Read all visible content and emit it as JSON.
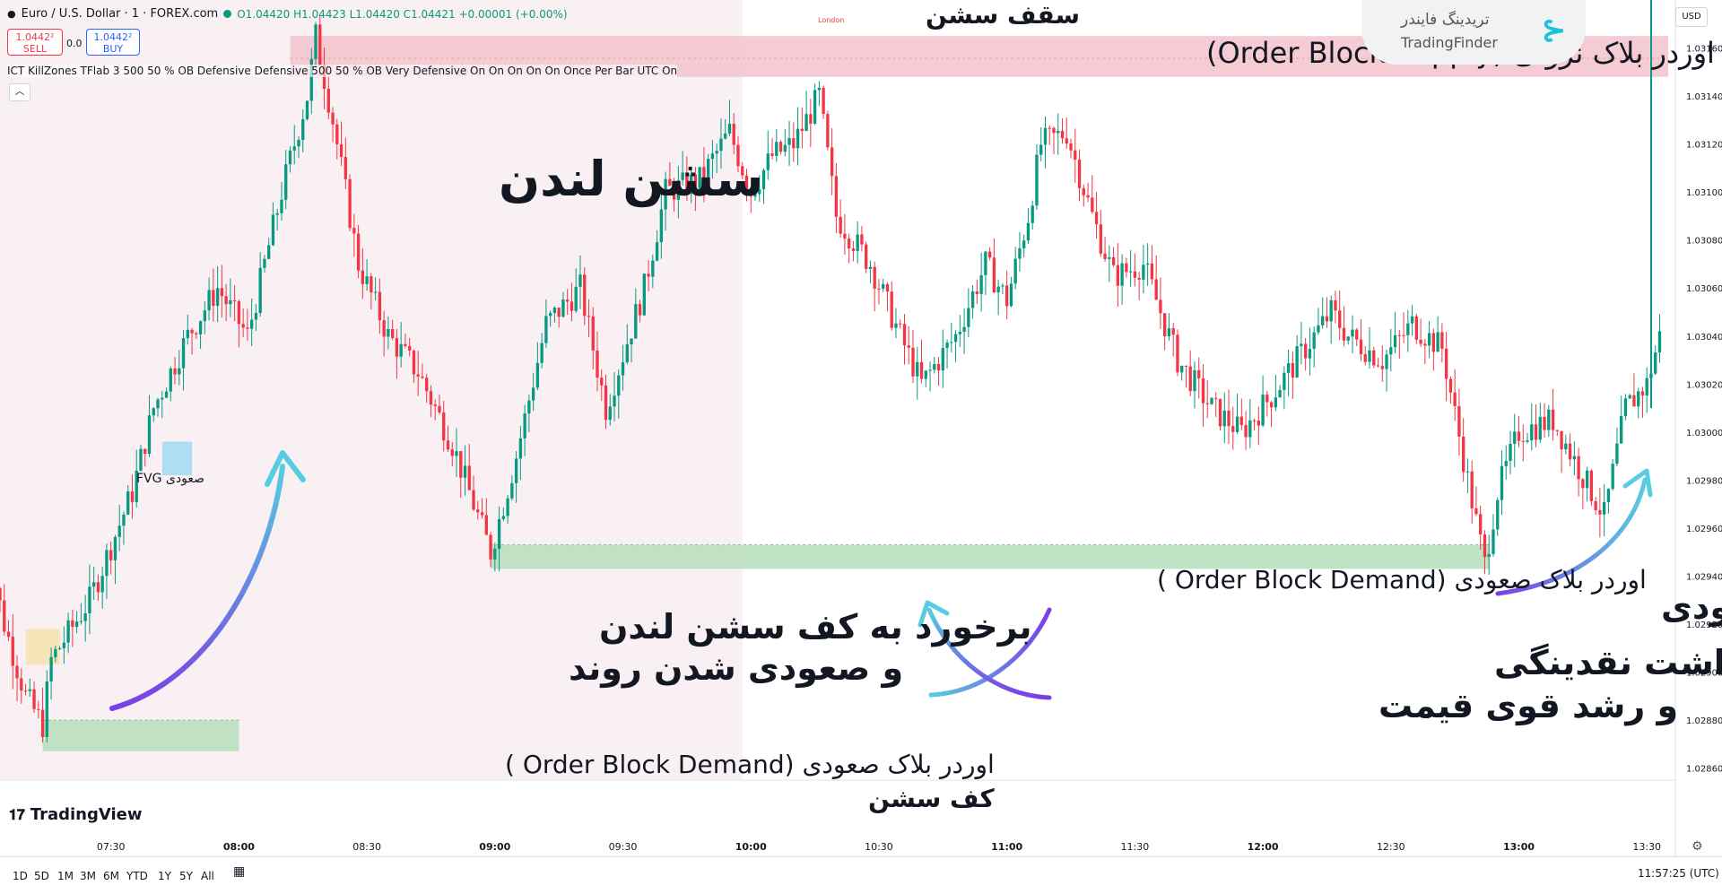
{
  "header": {
    "symbol": "Euro / U.S. Dollar · 1 · FOREX.com",
    "ohlc": "O1.04420 H1.04423 L1.04420 C1.04421 +0.00001 (+0.00%)",
    "sell_price": "1.0442²",
    "sell_label": "SELL",
    "spread": "0.0",
    "buy_price": "1.0442²",
    "buy_label": "BUY",
    "indicator": "ICT KillZones TFlab 3 500 50 % OB Defensive Defensive 500 50 % OB Very Defensive On On On On On Once Per Bar UTC On",
    "collapse_icon": "chevron-up-icon"
  },
  "logo": {
    "text_fa": "تریدینگ فایندر",
    "text_en": "TradingFinder",
    "icon": "tradingfinder-logo-icon"
  },
  "currency_button": "USD",
  "watermark": "TradingView",
  "timeframes": [
    "1D",
    "5D",
    "1M",
    "3M",
    "6M",
    "YTD",
    "1Y",
    "5Y",
    "All"
  ],
  "clock": "11:57:25 (UTC)",
  "colors": {
    "up": "#089981",
    "down": "#f23645",
    "session_fill": "#f9f0f3",
    "supply_zone": "#f4c7cf",
    "demand_zone": "#b9e0bd",
    "fvg": "#a6dcf2",
    "arrow_start": "#7b3fe4",
    "arrow_end": "#56cde0"
  },
  "chart_data": {
    "type": "candlestick",
    "symbol": "EUR/USD",
    "timeframe": "1",
    "x_ticks": [
      "07:30",
      "08:00",
      "08:30",
      "09:00",
      "09:30",
      "10:00",
      "10:30",
      "11:00",
      "11:30",
      "12:00",
      "12:30",
      "13:00",
      "13:30"
    ],
    "y_ticks": [
      "1.03160",
      "1.03140",
      "1.03120",
      "1.03100",
      "1.03080",
      "1.03060",
      "1.03040",
      "1.03020",
      "1.03000",
      "1.02980",
      "1.02960",
      "1.02940",
      "1.02920",
      "1.02900",
      "1.02880",
      "1.02860"
    ],
    "ylim": [
      1.02855,
      1.0318
    ],
    "x_range": [
      "07:04",
      "13:35"
    ],
    "price_path": [
      [
        "07:00",
        1.0296
      ],
      [
        "07:05",
        1.0292
      ],
      [
        "07:10",
        1.0289
      ],
      [
        "07:14",
        1.02878
      ],
      [
        "07:16",
        1.02905
      ],
      [
        "07:25",
        1.0293
      ],
      [
        "07:35",
        1.02975
      ],
      [
        "07:40",
        1.0301
      ],
      [
        "07:48",
        1.0304
      ],
      [
        "07:55",
        1.0306
      ],
      [
        "08:02",
        1.0304
      ],
      [
        "08:10",
        1.031
      ],
      [
        "08:16",
        1.0314
      ],
      [
        "08:18",
        1.03165
      ],
      [
        "08:22",
        1.0313
      ],
      [
        "08:28",
        1.0307
      ],
      [
        "08:35",
        1.0304
      ],
      [
        "08:42",
        1.03025
      ],
      [
        "08:50",
        1.02995
      ],
      [
        "08:56",
        1.02965
      ],
      [
        "08:59",
        1.0295
      ],
      [
        "09:05",
        1.0299
      ],
      [
        "09:12",
        1.03045
      ],
      [
        "09:20",
        1.0306
      ],
      [
        "09:26",
        1.0301
      ],
      [
        "09:35",
        1.0306
      ],
      [
        "09:40",
        1.031
      ],
      [
        "09:48",
        1.03105
      ],
      [
        "09:55",
        1.03125
      ],
      [
        "10:00",
        1.031
      ],
      [
        "10:05",
        1.03115
      ],
      [
        "10:10",
        1.0312
      ],
      [
        "10:16",
        1.0314
      ],
      [
        "10:20",
        1.0309
      ],
      [
        "10:28",
        1.0307
      ],
      [
        "10:35",
        1.0304
      ],
      [
        "10:40",
        1.0302
      ],
      [
        "10:48",
        1.0304
      ],
      [
        "10:55",
        1.0307
      ],
      [
        "11:00",
        1.03055
      ],
      [
        "11:05",
        1.0309
      ],
      [
        "11:08",
        1.0312
      ],
      [
        "11:14",
        1.03125
      ],
      [
        "11:20",
        1.0309
      ],
      [
        "11:25",
        1.03065
      ],
      [
        "11:32",
        1.0307
      ],
      [
        "11:40",
        1.0303
      ],
      [
        "11:48",
        1.0301
      ],
      [
        "11:55",
        1.03
      ],
      [
        "12:02",
        1.03015
      ],
      [
        "12:10",
        1.03035
      ],
      [
        "12:16",
        1.0305
      ],
      [
        "12:20",
        1.0304
      ],
      [
        "12:28",
        1.0303
      ],
      [
        "12:35",
        1.03045
      ],
      [
        "12:42",
        1.03035
      ],
      [
        "12:48",
        1.0298
      ],
      [
        "12:52",
        1.02945
      ],
      [
        "12:55",
        1.02975
      ],
      [
        "13:00",
        1.03
      ],
      [
        "13:08",
        1.03005
      ],
      [
        "13:14",
        1.02985
      ],
      [
        "13:20",
        1.02965
      ],
      [
        "13:25",
        1.0301
      ],
      [
        "13:30",
        1.0302
      ],
      [
        "13:33",
        1.0304
      ]
    ],
    "zones": [
      {
        "kind": "supply",
        "label": "اوردر بلاک نزولی  (Order Block Supply)",
        "from": "08:12",
        "to": "13:35",
        "top": 1.03165,
        "bottom": 1.03148
      },
      {
        "kind": "demand",
        "label": "اوردر بلاک صعودی  (Order Block Demand )",
        "from": "08:59",
        "to": "12:53",
        "top": 1.02953,
        "bottom": 1.02943
      },
      {
        "kind": "demand",
        "label": "اوردر بلاک صعودی  (Order Block Demand )",
        "from": "07:14",
        "to": "08:00",
        "top": 1.0288,
        "bottom": 1.02867
      },
      {
        "kind": "fvg",
        "label": "صعودی FVG",
        "from": "07:42",
        "to": "07:49",
        "top": 1.02996,
        "bottom": 1.02982
      },
      {
        "kind": "candle-box",
        "label": "",
        "from": "07:10",
        "to": "07:18",
        "top": 1.02918,
        "bottom": 1.02903
      }
    ],
    "sessions": [
      {
        "name": "London",
        "from": "07:04",
        "to": "09:58"
      }
    ],
    "annotations": [
      {
        "text": "سقف سشن"
      },
      {
        "text": "کف سشن"
      },
      {
        "text": "سشن لندن"
      },
      {
        "text": "برخورد به کف سشن لندن"
      },
      {
        "text": "و صعودی شدن روند"
      },
      {
        "text": "شکار اوردر بلاک و برداشت نقدینگی"
      },
      {
        "text": "و رشد قوی قیمت"
      },
      {
        "text": "روند صعودی"
      }
    ]
  }
}
